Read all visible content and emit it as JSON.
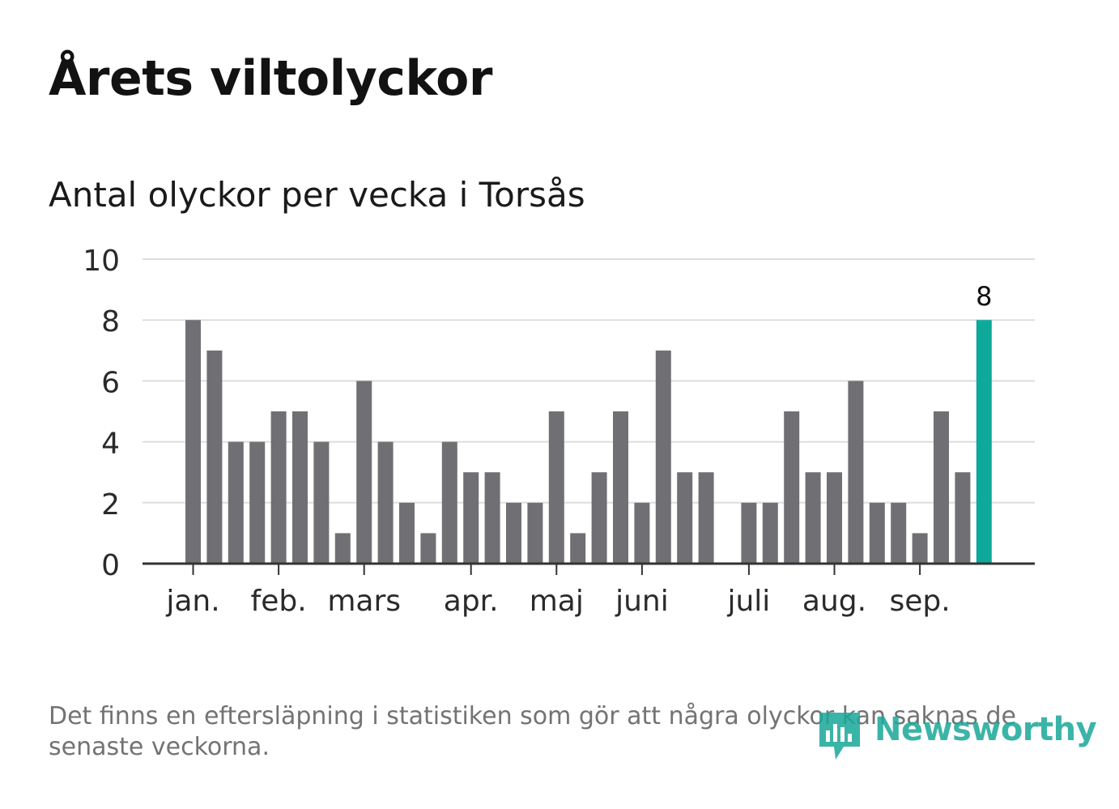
{
  "header": {
    "title": "Årets viltolyckor",
    "subtitle": "Antal olyckor per vecka i Torsås"
  },
  "footnote": "Det finns en eftersläpning i statistiken som gör att några olyckor kan saknas de senaste veckorna.",
  "brand": {
    "name": "Newsworthy",
    "color": "#1aa89a",
    "icon": "newsworthy-chart-icon"
  },
  "colors": {
    "bar": "#707074",
    "highlight": "#0ea99a",
    "grid": "#dddddd",
    "axis": "#333333"
  },
  "chart_data": {
    "type": "bar",
    "title": "Antal olyckor per vecka i Torsås",
    "xlabel": "",
    "ylabel": "",
    "ylim": [
      0,
      10
    ],
    "yticks": [
      0,
      2,
      4,
      6,
      8,
      10
    ],
    "grid": true,
    "values": [
      8,
      7,
      4,
      4,
      5,
      5,
      4,
      1,
      6,
      4,
      2,
      1,
      4,
      3,
      3,
      2,
      2,
      5,
      1,
      3,
      5,
      2,
      7,
      3,
      3,
      0,
      2,
      2,
      5,
      3,
      3,
      6,
      2,
      2,
      1,
      5,
      3,
      8
    ],
    "highlight_index": 37,
    "highlight_label": "8",
    "month_ticks": [
      {
        "label": "jan.",
        "week": 0
      },
      {
        "label": "feb.",
        "week": 4
      },
      {
        "label": "mars",
        "week": 8
      },
      {
        "label": "apr.",
        "week": 13
      },
      {
        "label": "maj",
        "week": 17
      },
      {
        "label": "juni",
        "week": 21
      },
      {
        "label": "juli",
        "week": 26
      },
      {
        "label": "aug.",
        "week": 30
      },
      {
        "label": "sep.",
        "week": 34
      }
    ]
  }
}
